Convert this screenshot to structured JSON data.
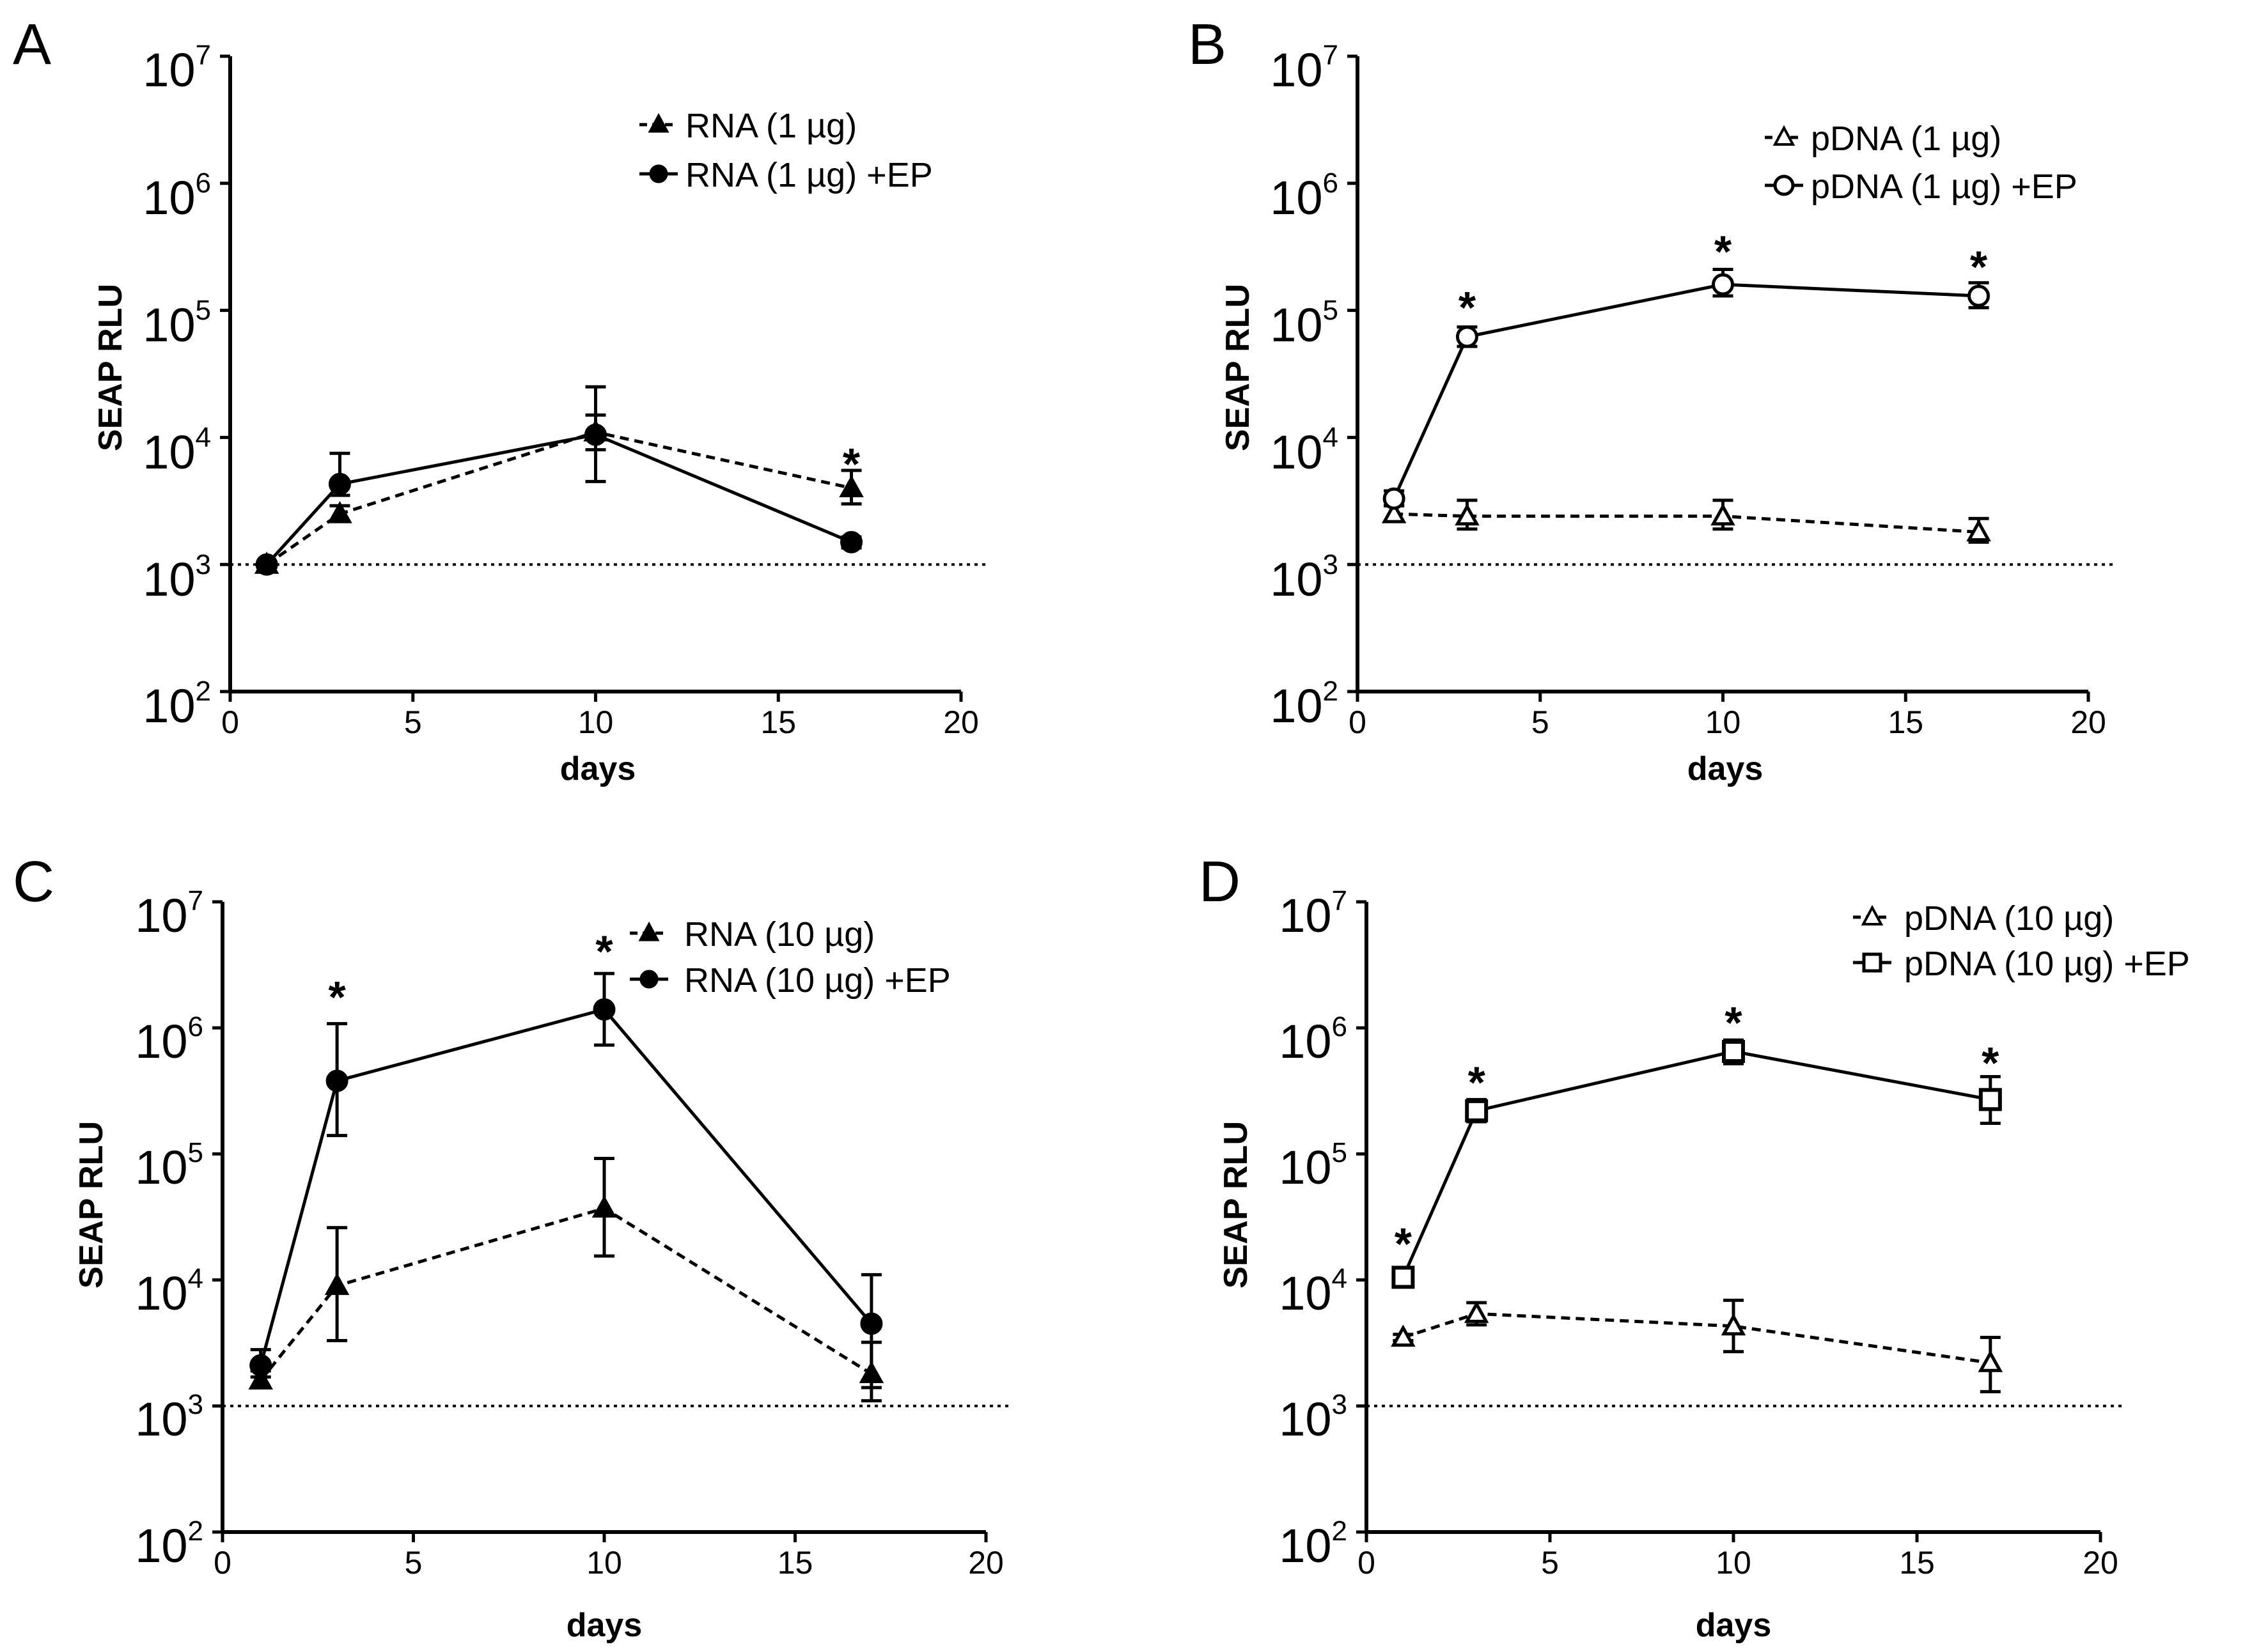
{
  "figure": {
    "background": "#ffffff",
    "line_color": "#000000"
  },
  "chart_data": [
    {
      "panel": "A",
      "type": "line",
      "xlabel": "days",
      "ylabel": "SEAP RLU",
      "xlim": [
        0,
        20
      ],
      "x_ticks": [
        0,
        5,
        10,
        15,
        20
      ],
      "y_scale": "log",
      "ylim": [
        100,
        10000000
      ],
      "y_ticks": [
        {
          "base": "10",
          "exp": "7"
        },
        {
          "base": "10",
          "exp": "6"
        },
        {
          "base": "10",
          "exp": "5"
        },
        {
          "base": "10",
          "exp": "4"
        },
        {
          "base": "10",
          "exp": "3"
        },
        {
          "base": "10",
          "exp": "2"
        }
      ],
      "baseline": 1000,
      "legend_position": "top-right",
      "series": [
        {
          "name": "RNA (1 µg)",
          "marker": "triangle",
          "filled": true,
          "dashed": true,
          "x": [
            1,
            3,
            10,
            17
          ],
          "y": [
            1000,
            2500,
            11000,
            4000
          ],
          "err_low": [
            950,
            2200,
            8000,
            3000
          ],
          "err_high": [
            1050,
            2900,
            15000,
            5500
          ]
        },
        {
          "name": "RNA (1 µg) +EP",
          "marker": "circle",
          "filled": true,
          "dashed": false,
          "x": [
            1,
            3,
            10,
            17
          ],
          "y": [
            1000,
            4300,
            10500,
            1500
          ],
          "err_low": [
            950,
            3500,
            4500,
            1350
          ],
          "err_high": [
            1050,
            7500,
            25000,
            1650
          ]
        }
      ],
      "annotations": [
        {
          "text": "*",
          "x": 17,
          "y": 7000
        }
      ]
    },
    {
      "panel": "B",
      "type": "line",
      "xlabel": "days",
      "ylabel": "SEAP RLU",
      "xlim": [
        0,
        20
      ],
      "x_ticks": [
        0,
        5,
        10,
        15,
        20
      ],
      "y_scale": "log",
      "ylim": [
        100,
        10000000
      ],
      "y_ticks": [
        {
          "base": "10",
          "exp": "7"
        },
        {
          "base": "10",
          "exp": "6"
        },
        {
          "base": "10",
          "exp": "5"
        },
        {
          "base": "10",
          "exp": "4"
        },
        {
          "base": "10",
          "exp": "3"
        },
        {
          "base": "10",
          "exp": "2"
        }
      ],
      "baseline": 1000,
      "legend_position": "top-right",
      "series": [
        {
          "name": "pDNA (1 µg)",
          "marker": "triangle",
          "filled": false,
          "dashed": true,
          "x": [
            1,
            3,
            10,
            17
          ],
          "y": [
            2500,
            2400,
            2400,
            1800
          ],
          "err_low": [
            2200,
            1900,
            1900,
            1500
          ],
          "err_high": [
            2900,
            3200,
            3200,
            2300
          ]
        },
        {
          "name": "pDNA (1 µg) +EP",
          "marker": "circle",
          "filled": false,
          "dashed": false,
          "x": [
            1,
            3,
            10,
            17
          ],
          "y": [
            3300,
            62000,
            160000,
            130000
          ],
          "err_low": [
            2900,
            52000,
            130000,
            105000
          ],
          "err_high": [
            3800,
            74000,
            210000,
            165000
          ]
        }
      ],
      "annotations": [
        {
          "text": "*",
          "x": 3,
          "y": 120000
        },
        {
          "text": "*",
          "x": 10,
          "y": 330000
        },
        {
          "text": "*",
          "x": 17,
          "y": 250000
        }
      ]
    },
    {
      "panel": "C",
      "type": "line",
      "xlabel": "days",
      "ylabel": "SEAP RLU",
      "xlim": [
        0,
        20
      ],
      "x_ticks": [
        0,
        5,
        10,
        15,
        20
      ],
      "y_scale": "log",
      "ylim": [
        100,
        10000000
      ],
      "y_ticks": [
        {
          "base": "10",
          "exp": "7"
        },
        {
          "base": "10",
          "exp": "6"
        },
        {
          "base": "10",
          "exp": "5"
        },
        {
          "base": "10",
          "exp": "4"
        },
        {
          "base": "10",
          "exp": "3"
        },
        {
          "base": "10",
          "exp": "2"
        }
      ],
      "baseline": 1000,
      "legend_position": "top-right",
      "series": [
        {
          "name": "RNA (10 µg)",
          "marker": "triangle",
          "filled": true,
          "dashed": true,
          "x": [
            1,
            3,
            10,
            17
          ],
          "y": [
            1600,
            9000,
            37000,
            1800
          ],
          "err_low": [
            1400,
            3300,
            15500,
            1100
          ],
          "err_high": [
            1900,
            26000,
            92000,
            3200
          ]
        },
        {
          "name": "RNA (10 µg) +EP",
          "marker": "circle",
          "filled": true,
          "dashed": false,
          "x": [
            1,
            3,
            10,
            17
          ],
          "y": [
            2100,
            380000,
            1400000,
            4500
          ],
          "err_low": [
            1700,
            140000,
            730000,
            1400
          ],
          "err_high": [
            2800,
            1080000,
            2700000,
            11000
          ]
        }
      ],
      "annotations": [
        {
          "text": "*",
          "x": 3,
          "y": 2000000
        },
        {
          "text": "*",
          "x": 10,
          "y": 4600000
        }
      ]
    },
    {
      "panel": "D",
      "type": "line",
      "xlabel": "days",
      "ylabel": "SEAP RLU",
      "xlim": [
        0,
        20
      ],
      "x_ticks": [
        0,
        5,
        10,
        15,
        20
      ],
      "y_scale": "log",
      "ylim": [
        100,
        10000000
      ],
      "y_ticks": [
        {
          "base": "10",
          "exp": "7"
        },
        {
          "base": "10",
          "exp": "6"
        },
        {
          "base": "10",
          "exp": "5"
        },
        {
          "base": "10",
          "exp": "4"
        },
        {
          "base": "10",
          "exp": "3"
        },
        {
          "base": "10",
          "exp": "2"
        }
      ],
      "baseline": 1000,
      "legend_position": "top-right",
      "series": [
        {
          "name": "pDNA (10 µg)",
          "marker": "triangle",
          "filled": false,
          "dashed": true,
          "x": [
            1,
            3,
            10,
            17
          ],
          "y": [
            3500,
            5400,
            4300,
            2200
          ],
          "err_low": [
            3300,
            4400,
            2700,
            1300
          ],
          "err_high": [
            3700,
            6600,
            6900,
            3500
          ]
        },
        {
          "name": "pDNA (10 µg) +EP",
          "marker": "square",
          "filled": false,
          "dashed": false,
          "x": [
            1,
            3,
            10,
            17
          ],
          "y": [
            10500,
            220000,
            650000,
            270000
          ],
          "err_low": [
            9000,
            180000,
            520000,
            175000
          ],
          "err_high": [
            12000,
            270000,
            800000,
            410000
          ]
        }
      ],
      "annotations": [
        {
          "text": "*",
          "x": 1,
          "y": 22000
        },
        {
          "text": "*",
          "x": 3,
          "y": 420000
        },
        {
          "text": "*",
          "x": 10,
          "y": 1250000
        },
        {
          "text": "*",
          "x": 17,
          "y": 600000
        }
      ]
    }
  ]
}
